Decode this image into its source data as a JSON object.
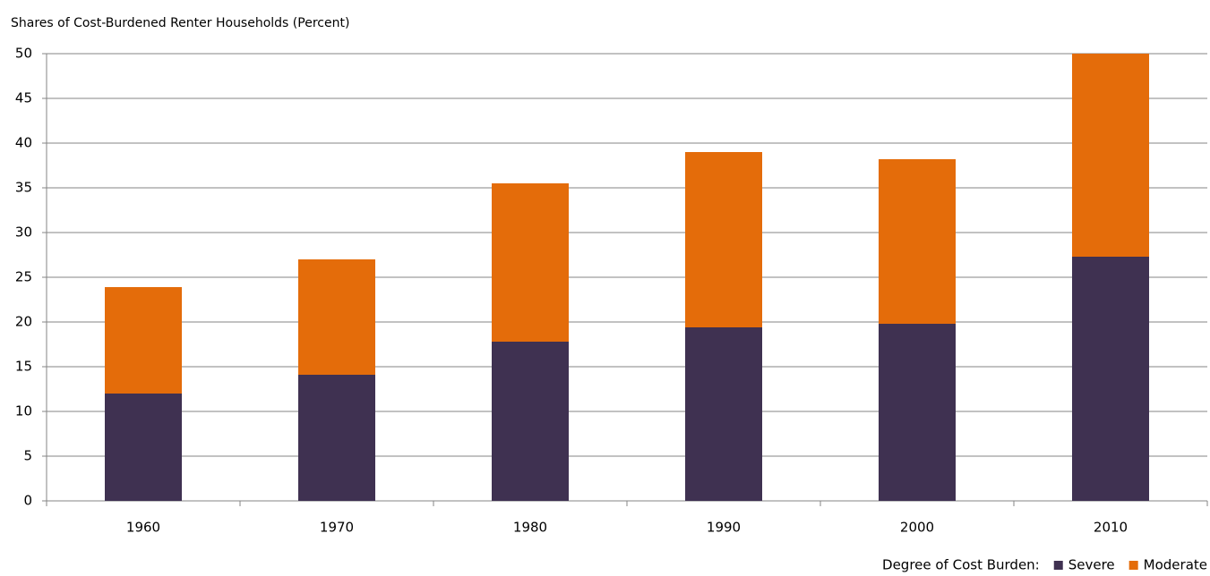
{
  "chart_data": {
    "type": "stacked-bar",
    "title": "Shares of Cost-Burdened Renter Households (Percent)",
    "categories": [
      "1960",
      "1970",
      "1980",
      "1990",
      "2000",
      "2010"
    ],
    "series": [
      {
        "name": "Severe",
        "color": "#3f3151",
        "values": [
          12.0,
          14.1,
          17.8,
          19.4,
          19.8,
          27.3
        ]
      },
      {
        "name": "Moderate",
        "color": "#e46c0a",
        "values": [
          11.9,
          12.9,
          17.7,
          19.6,
          18.4,
          22.7
        ]
      }
    ],
    "legend_title": "Degree of Cost Burden:",
    "legend": "bottom-right",
    "ylim": [
      0,
      50
    ],
    "yticks": [
      0,
      5,
      10,
      15,
      20,
      25,
      30,
      35,
      40,
      45,
      50
    ],
    "grid": true
  }
}
